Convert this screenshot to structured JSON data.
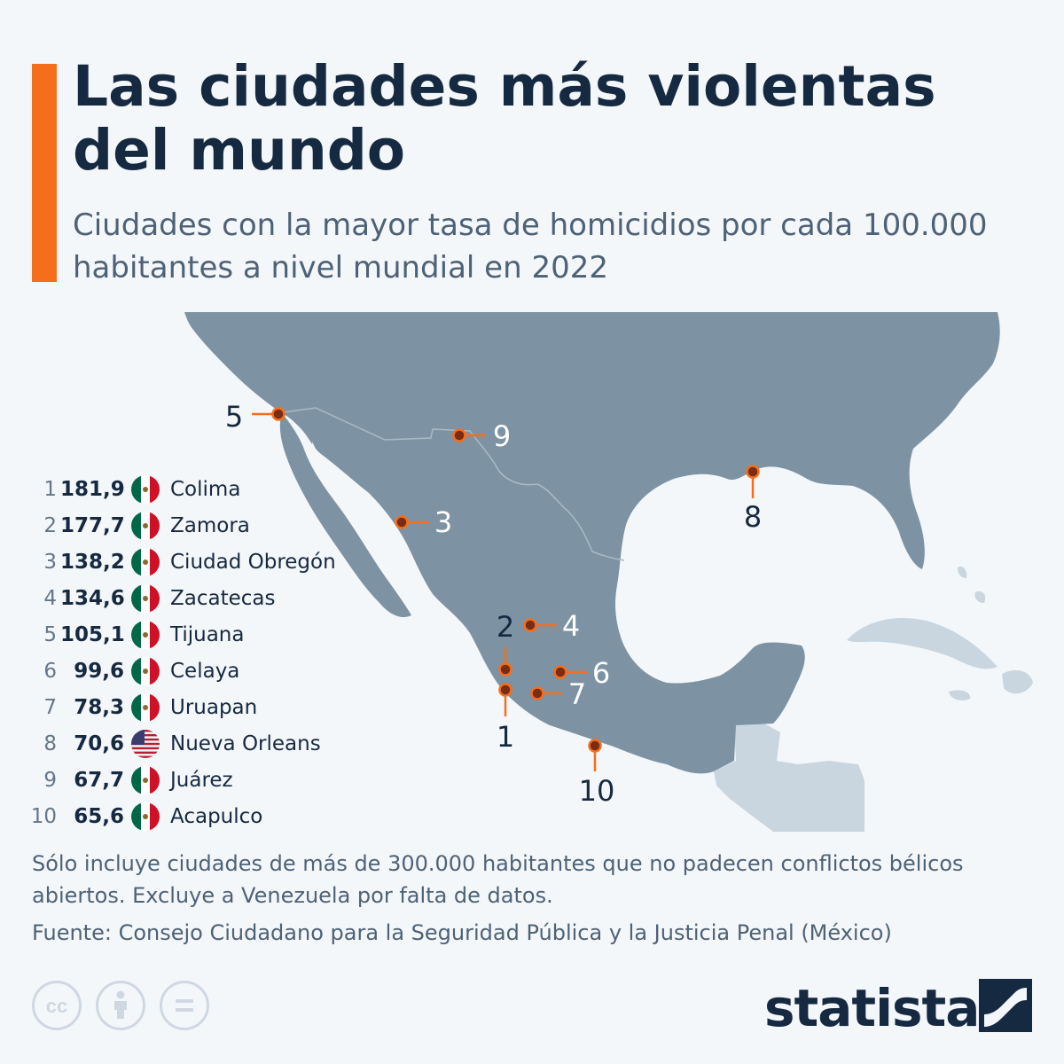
{
  "header": {
    "title": "Las ciudades más violentas del mundo",
    "subtitle": "Ciudades con la mayor tasa de homicidios por cada 100.000 habitantes a nivel mundial en 2022"
  },
  "ranking": [
    {
      "rank": "1",
      "value": "181,9",
      "country": "mexico",
      "city": "Colima"
    },
    {
      "rank": "2",
      "value": "177,7",
      "country": "mexico",
      "city": "Zamora"
    },
    {
      "rank": "3",
      "value": "138,2",
      "country": "mexico",
      "city": "Ciudad Obregón"
    },
    {
      "rank": "4",
      "value": "134,6",
      "country": "mexico",
      "city": "Zacatecas"
    },
    {
      "rank": "5",
      "value": "105,1",
      "country": "mexico",
      "city": "Tijuana"
    },
    {
      "rank": "6",
      "value": "99,6",
      "country": "mexico",
      "city": "Celaya"
    },
    {
      "rank": "7",
      "value": "78,3",
      "country": "mexico",
      "city": "Uruapan"
    },
    {
      "rank": "8",
      "value": "70,6",
      "country": "usa",
      "city": "Nueva Orleans"
    },
    {
      "rank": "9",
      "value": "67,7",
      "country": "mexico",
      "city": "Juárez"
    },
    {
      "rank": "10",
      "value": "65,6",
      "country": "mexico",
      "city": "Acapulco"
    }
  ],
  "map": {
    "markers": [
      {
        "label": "1"
      },
      {
        "label": "2"
      },
      {
        "label": "3"
      },
      {
        "label": "4"
      },
      {
        "label": "5"
      },
      {
        "label": "6"
      },
      {
        "label": "7"
      },
      {
        "label": "8"
      },
      {
        "label": "9"
      },
      {
        "label": "10"
      }
    ]
  },
  "footer": {
    "note": "Sólo incluye ciudades de más de 300.000 habitantes que no padecen conflictos bélicos abiertos. Excluye a Venezuela por falta de datos.",
    "source": "Fuente: Consejo Ciudadano para la Seguridad Pública y la Justicia Penal (México)",
    "brand": "statista",
    "license_icons": [
      "cc-icon",
      "attribution-icon",
      "no-derivatives-icon"
    ]
  },
  "colors": {
    "accent": "#f46e1b",
    "title": "#152941",
    "land": "#7d93a3",
    "land_light": "#c9d6df",
    "marker_fill": "#7a2d12",
    "marker_stroke": "#f46e1b",
    "background": "#f4f7fa"
  }
}
